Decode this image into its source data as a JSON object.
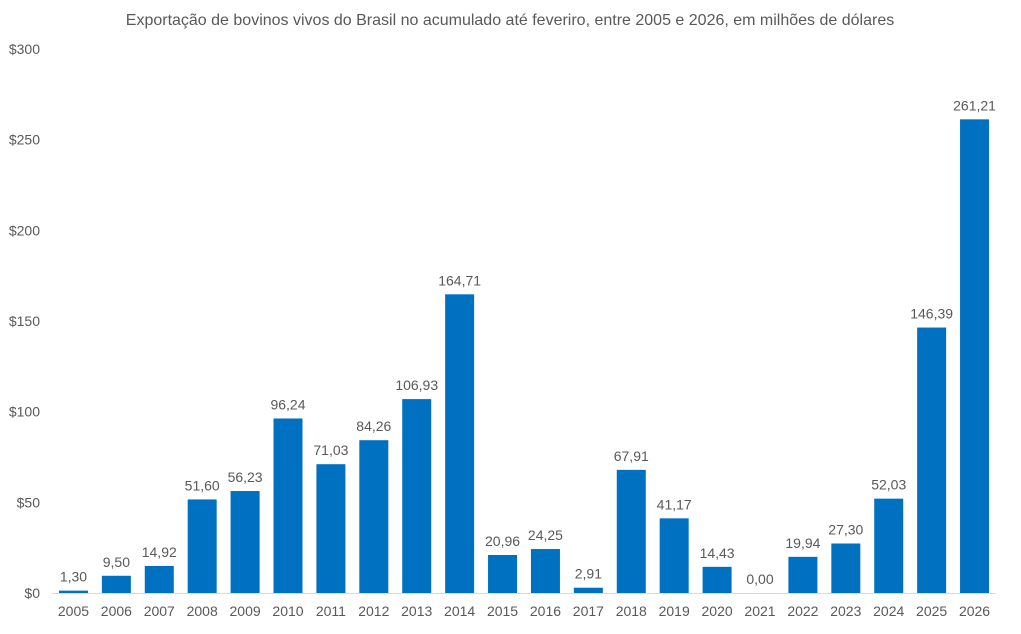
{
  "chart_data": {
    "type": "bar",
    "title": "Exportação de bovinos vivos do Brasil no acumulado até feveriro, entre 2005 e 2026, em milhões de dólares",
    "xlabel": "",
    "ylabel": "",
    "ylim": [
      0,
      300
    ],
    "yticks": [
      0,
      50,
      100,
      150,
      200,
      250,
      300
    ],
    "ytick_labels": [
      "$0",
      "$50",
      "$100",
      "$150",
      "$200",
      "$250",
      "$300"
    ],
    "grid": false,
    "bar_color": "#0070C0",
    "categories": [
      "2005",
      "2006",
      "2007",
      "2008",
      "2009",
      "2010",
      "2011",
      "2012",
      "2013",
      "2014",
      "2015",
      "2016",
      "2017",
      "2018",
      "2019",
      "2020",
      "2021",
      "2022",
      "2023",
      "2024",
      "2025",
      "2026"
    ],
    "values": [
      1.3,
      9.5,
      14.92,
      51.6,
      56.23,
      96.24,
      71.03,
      84.26,
      106.93,
      164.71,
      20.96,
      24.25,
      2.91,
      67.91,
      41.17,
      14.43,
      0.0,
      19.94,
      27.3,
      52.03,
      146.39,
      261.21
    ],
    "data_labels": [
      "1,30",
      "9,50",
      "14,92",
      "51,60",
      "56,23",
      "96,24",
      "71,03",
      "84,26",
      "106,93",
      "164,71",
      "20,96",
      "24,25",
      "2,91",
      "67,91",
      "41,17",
      "14,43",
      "0,00",
      "19,94",
      "27,30",
      "52,03",
      "146,39",
      "261,21"
    ]
  }
}
